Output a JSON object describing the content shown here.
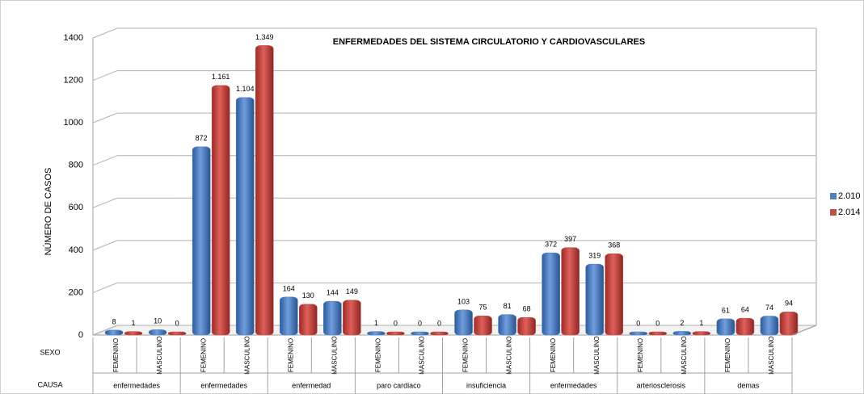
{
  "chart_data": {
    "type": "bar",
    "title": "ENFERMEDADES DEL SISTEMA CIRCULATORIO  Y CARDIOVASCULARES",
    "y_label": "NÚMERO DE CASOS",
    "row_labels": [
      "SEXO",
      "CAUSA"
    ],
    "categories": [
      "FEMENINO",
      "MASCULINO",
      "FEMENINO",
      "MASCULINO",
      "FEMENINO",
      "MASCULINO",
      "FEMENINO",
      "MASCULINO",
      "FEMENINO",
      "MASCULINO",
      "FEMENINO",
      "MASCULINO",
      "FEMENINO",
      "MASCULINO",
      "FEMENINO",
      "MASCULINO"
    ],
    "causes": [
      "enfermedades",
      "enfermedades",
      "enfermedad",
      "paro cardiaco",
      "insuficiencia",
      "enfermedades",
      "arteriosclerosis",
      "demas"
    ],
    "series": [
      {
        "name": "2.010",
        "color": "#4f81bd",
        "values": [
          8,
          10,
          872,
          1104,
          164,
          144,
          1,
          0,
          103,
          81,
          372,
          319,
          0,
          2,
          61,
          74
        ],
        "value_labels": [
          "8",
          "10",
          "872",
          "1.104",
          "164",
          "144",
          "1",
          "0",
          "103",
          "81",
          "372",
          "319",
          "0",
          "2",
          "61",
          "74"
        ]
      },
      {
        "name": "2.014",
        "color": "#c0504d",
        "values": [
          1,
          0,
          1161,
          1349,
          130,
          149,
          0,
          0,
          75,
          68,
          397,
          368,
          0,
          1,
          64,
          94
        ],
        "value_labels": [
          "1",
          "0",
          "1.161",
          "1.349",
          "130",
          "149",
          "0",
          "0",
          "75",
          "68",
          "397",
          "368",
          "0",
          "1",
          "64",
          "94"
        ]
      }
    ],
    "ylim": [
      0,
      1400
    ],
    "yticks": [
      0,
      200,
      400,
      600,
      800,
      1000,
      1200,
      1400
    ],
    "grid": true,
    "legend": "right"
  }
}
